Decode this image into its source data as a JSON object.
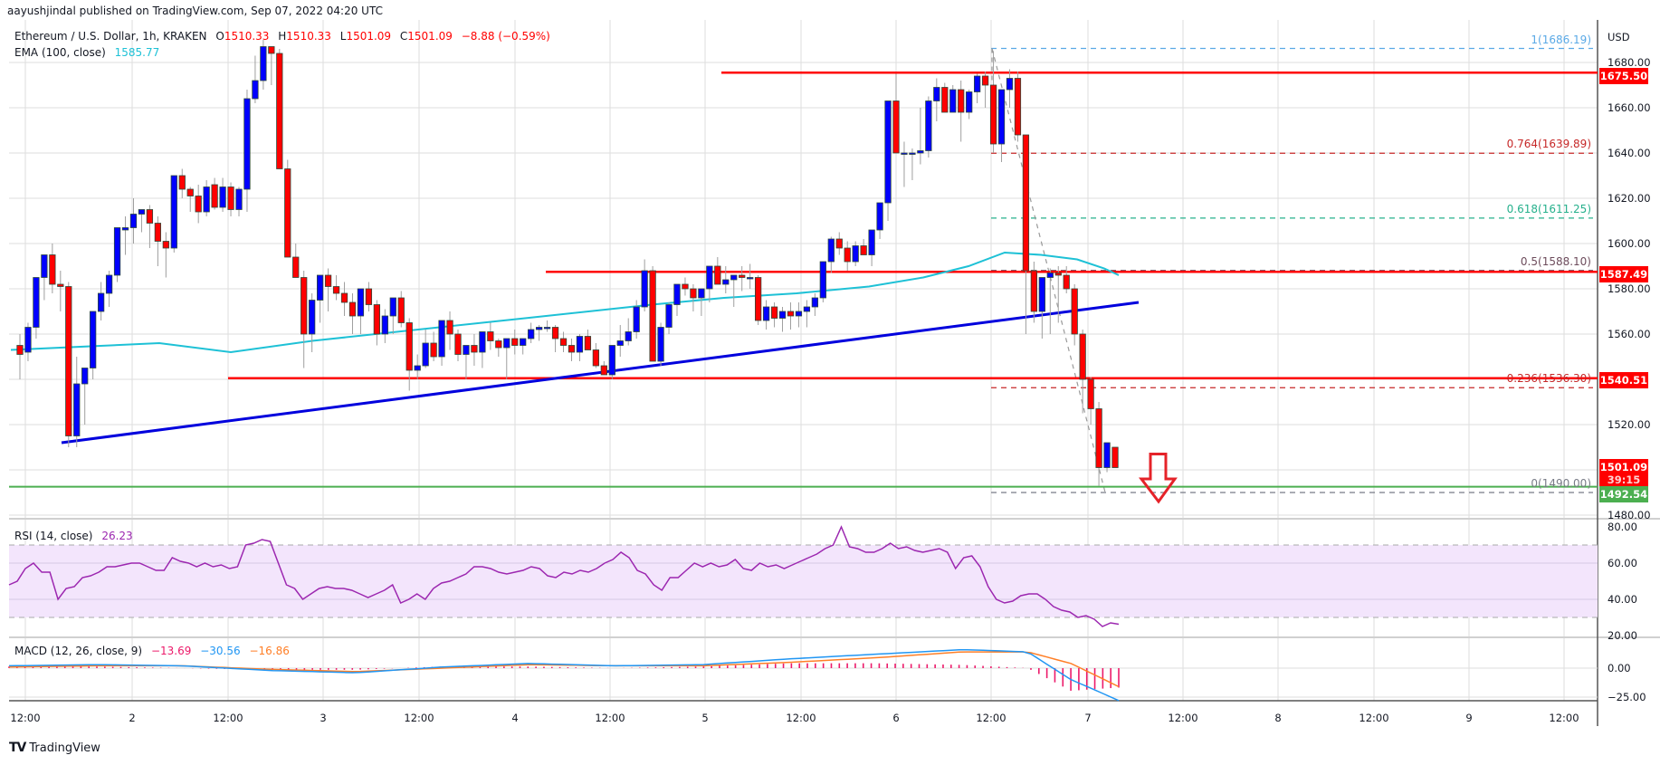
{
  "header": {
    "published": "aayushjindal published on TradingView.com, Sep 07, 2022 04:20 UTC"
  },
  "legend": {
    "symbol": "Ethereum / U.S. Dollar, 1h, KRAKEN",
    "o_label": "O",
    "o": "1510.33",
    "h_label": "H",
    "h": "1510.33",
    "l_label": "L",
    "l": "1501.09",
    "c_label": "C",
    "c": "1501.09",
    "change": "−8.88 (−0.59%)",
    "ema_label": "EMA (100, close)",
    "ema_value": "1585.77",
    "rsi_label": "RSI (14, close)",
    "rsi_value": "26.23",
    "macd_label": "MACD (12, 26, close, 9)",
    "macd_hist": "−13.69",
    "macd_line": "−30.56",
    "macd_signal": "−16.86"
  },
  "price_axis": {
    "currency": "USD",
    "ticks": [
      "1680.00",
      "1660.00",
      "1640.00",
      "1620.00",
      "1600.00",
      "1580.00",
      "1560.00",
      "1520.00",
      "1480.00"
    ],
    "tags": {
      "resistance_top": "1675.50",
      "resistance_mid": "1587.49",
      "resistance_low": "1540.51",
      "last_price": "1501.09",
      "countdown": "39:15",
      "support": "1492.54"
    }
  },
  "rsi_axis": {
    "ticks": [
      "80.00",
      "60.00",
      "40.00",
      "20.00"
    ]
  },
  "macd_axis": {
    "ticks": [
      "0.00",
      "−25.00"
    ]
  },
  "fibonacci": [
    {
      "label": "1(1686.19)",
      "price": 1686.19,
      "color": "#5aa9e6"
    },
    {
      "label": "0.764(1639.89)",
      "price": 1639.89,
      "color": "#c62828"
    },
    {
      "label": "0.618(1611.25)",
      "price": 1611.25,
      "color": "#26b08c"
    },
    {
      "label": "0.5(1588.10)",
      "price": 1588.1,
      "color": "#6d4c5c"
    },
    {
      "label": "0.236(1536.30)",
      "price": 1536.3,
      "color": "#c62828"
    },
    {
      "label": "0(1490.00)",
      "price": 1490.0,
      "color": "#787b86"
    }
  ],
  "time_axis": {
    "labels": [
      "12:00",
      "2",
      "12:00",
      "3",
      "12:00",
      "4",
      "12:00",
      "5",
      "12:00",
      "6",
      "12:00",
      "7",
      "12:00",
      "8",
      "12:00",
      "9",
      "12:00"
    ]
  },
  "branding": {
    "name": "TradingView"
  },
  "colors": {
    "up": "#0000ff",
    "down": "#ff0000",
    "ema": "#1ec1d6",
    "trendline": "#0000dd",
    "resistance": "#ff0000",
    "support": "#4caf50",
    "rsi": "#9c27b0",
    "rsi_band": "#f3e5fc",
    "macd_line": "#2196f3",
    "macd_signal": "#ff7f27",
    "macd_hist": "#ec1a6a",
    "grid": "#dedede"
  },
  "chart_data": {
    "type": "candlestick",
    "title": "Ethereum / U.S. Dollar, 1h, KRAKEN",
    "ylabel": "USD",
    "ylim": [
      1475,
      1690
    ],
    "x_start_label": "Sep 1 12:00",
    "candles_ohlc": [
      [
        1555,
        1560,
        1540,
        1551
      ],
      [
        1552,
        1565,
        1548,
        1563
      ],
      [
        1563,
        1580,
        1558,
        1585
      ],
      [
        1585,
        1595,
        1575,
        1595
      ],
      [
        1595,
        1600,
        1578,
        1582
      ],
      [
        1582,
        1588,
        1570,
        1581
      ],
      [
        1581,
        1583,
        1510,
        1515
      ],
      [
        1515,
        1550,
        1510,
        1538
      ],
      [
        1538,
        1545,
        1520,
        1545
      ],
      [
        1545,
        1570,
        1540,
        1570
      ],
      [
        1570,
        1583,
        1566,
        1578
      ],
      [
        1578,
        1588,
        1572,
        1586
      ],
      [
        1586,
        1605,
        1583,
        1607
      ],
      [
        1606,
        1612,
        1595,
        1607
      ],
      [
        1607,
        1620,
        1600,
        1613
      ],
      [
        1613,
        1615,
        1605,
        1615
      ],
      [
        1615,
        1617,
        1598,
        1609
      ],
      [
        1609,
        1612,
        1590,
        1601
      ],
      [
        1601,
        1605,
        1585,
        1598
      ],
      [
        1598,
        1630,
        1596,
        1630
      ],
      [
        1630,
        1633,
        1620,
        1624
      ],
      [
        1624,
        1625,
        1614,
        1621
      ],
      [
        1621,
        1626,
        1609,
        1614
      ],
      [
        1614,
        1628,
        1612,
        1625
      ],
      [
        1626,
        1629,
        1615,
        1616
      ],
      [
        1616,
        1629,
        1614,
        1625
      ],
      [
        1625,
        1627,
        1612,
        1615
      ],
      [
        1615,
        1625,
        1612,
        1624
      ],
      [
        1624,
        1668,
        1614,
        1664
      ],
      [
        1664,
        1683,
        1662,
        1672
      ],
      [
        1672,
        1690,
        1668,
        1687
      ],
      [
        1687,
        1678,
        1670,
        1684
      ],
      [
        1684,
        1686,
        1640,
        1633
      ],
      [
        1633,
        1637,
        1600,
        1594
      ],
      [
        1594,
        1600,
        1585,
        1585
      ],
      [
        1585,
        1588,
        1545,
        1560
      ],
      [
        1560,
        1578,
        1552,
        1575
      ],
      [
        1575,
        1578,
        1565,
        1586
      ],
      [
        1586,
        1589,
        1570,
        1581
      ],
      [
        1581,
        1586,
        1575,
        1578
      ],
      [
        1578,
        1583,
        1568,
        1574
      ],
      [
        1574,
        1578,
        1560,
        1568
      ],
      [
        1568,
        1580,
        1560,
        1580
      ],
      [
        1580,
        1583,
        1570,
        1573
      ],
      [
        1573,
        1575,
        1555,
        1560
      ],
      [
        1560,
        1571,
        1556,
        1568
      ],
      [
        1568,
        1575,
        1560,
        1576
      ],
      [
        1576,
        1579,
        1563,
        1565
      ],
      [
        1565,
        1567,
        1535,
        1544
      ],
      [
        1544,
        1551,
        1540,
        1546
      ],
      [
        1546,
        1562,
        1545,
        1556
      ],
      [
        1556,
        1561,
        1548,
        1550
      ],
      [
        1550,
        1565,
        1546,
        1566
      ],
      [
        1566,
        1570,
        1553,
        1560
      ],
      [
        1560,
        1562,
        1548,
        1551
      ],
      [
        1551,
        1555,
        1540,
        1555
      ],
      [
        1555,
        1560,
        1546,
        1552
      ],
      [
        1552,
        1560,
        1545,
        1561
      ],
      [
        1561,
        1565,
        1553,
        1557
      ],
      [
        1557,
        1558,
        1550,
        1554
      ],
      [
        1554,
        1556,
        1540,
        1558
      ],
      [
        1558,
        1562,
        1551,
        1555
      ],
      [
        1555,
        1558,
        1551,
        1558
      ],
      [
        1558,
        1565,
        1556,
        1562
      ],
      [
        1562,
        1564,
        1557,
        1563
      ],
      [
        1563,
        1566,
        1561,
        1563
      ],
      [
        1563,
        1564,
        1552,
        1558
      ],
      [
        1558,
        1561,
        1552,
        1555
      ],
      [
        1555,
        1558,
        1548,
        1552
      ],
      [
        1552,
        1560,
        1548,
        1559
      ],
      [
        1559,
        1562,
        1553,
        1553
      ],
      [
        1553,
        1556,
        1545,
        1546
      ],
      [
        1546,
        1548,
        1542,
        1542
      ],
      [
        1542,
        1555,
        1540,
        1555
      ],
      [
        1555,
        1564,
        1550,
        1557
      ],
      [
        1557,
        1567,
        1555,
        1561
      ],
      [
        1561,
        1575,
        1558,
        1572
      ],
      [
        1572,
        1593,
        1570,
        1588
      ],
      [
        1588,
        1590,
        1548,
        1548
      ],
      [
        1548,
        1565,
        1546,
        1563
      ],
      [
        1563,
        1574,
        1560,
        1573
      ],
      [
        1573,
        1580,
        1568,
        1582
      ],
      [
        1582,
        1585,
        1577,
        1580
      ],
      [
        1580,
        1582,
        1570,
        1576
      ],
      [
        1576,
        1580,
        1568,
        1580
      ],
      [
        1580,
        1586,
        1574,
        1590
      ],
      [
        1590,
        1594,
        1584,
        1582
      ],
      [
        1582,
        1590,
        1578,
        1584
      ],
      [
        1584,
        1585,
        1572,
        1586
      ],
      [
        1586,
        1590,
        1579,
        1585
      ],
      [
        1585,
        1591,
        1580,
        1585
      ],
      [
        1585,
        1586,
        1564,
        1566
      ],
      [
        1566,
        1575,
        1562,
        1572
      ],
      [
        1572,
        1574,
        1563,
        1567
      ],
      [
        1567,
        1572,
        1561,
        1570
      ],
      [
        1570,
        1574,
        1562,
        1568
      ],
      [
        1568,
        1574,
        1563,
        1570
      ],
      [
        1570,
        1575,
        1563,
        1572
      ],
      [
        1572,
        1578,
        1568,
        1576
      ],
      [
        1576,
        1592,
        1574,
        1592
      ],
      [
        1592,
        1603,
        1587,
        1602
      ],
      [
        1602,
        1605,
        1595,
        1598
      ],
      [
        1598,
        1601,
        1588,
        1592
      ],
      [
        1592,
        1601,
        1590,
        1599
      ],
      [
        1599,
        1602,
        1595,
        1595
      ],
      [
        1595,
        1605,
        1590,
        1606
      ],
      [
        1606,
        1618,
        1602,
        1618
      ],
      [
        1618,
        1648,
        1610,
        1663
      ],
      [
        1663,
        1675,
        1640,
        1640
      ],
      [
        1640,
        1645,
        1625,
        1640
      ],
      [
        1640,
        1642,
        1628,
        1640
      ],
      [
        1640,
        1660,
        1635,
        1641
      ],
      [
        1641,
        1665,
        1638,
        1663
      ],
      [
        1663,
        1673,
        1654,
        1669
      ],
      [
        1669,
        1671,
        1659,
        1658
      ],
      [
        1658,
        1670,
        1658,
        1668
      ],
      [
        1668,
        1672,
        1645,
        1658
      ],
      [
        1658,
        1668,
        1655,
        1667
      ],
      [
        1667,
        1675,
        1662,
        1674
      ],
      [
        1674,
        1676,
        1660,
        1670
      ],
      [
        1670,
        1685,
        1640,
        1644
      ],
      [
        1644,
        1668,
        1636,
        1668
      ],
      [
        1668,
        1677,
        1660,
        1673
      ],
      [
        1673,
        1676,
        1645,
        1648
      ],
      [
        1648,
        1648,
        1560,
        1588
      ],
      [
        1588,
        1592,
        1565,
        1570
      ],
      [
        1570,
        1583,
        1558,
        1585
      ],
      [
        1585,
        1589,
        1560,
        1587
      ],
      [
        1587,
        1590,
        1565,
        1586
      ],
      [
        1586,
        1590,
        1578,
        1580
      ],
      [
        1580,
        1582,
        1555,
        1560
      ],
      [
        1560,
        1562,
        1525,
        1540
      ],
      [
        1540,
        1541,
        1520,
        1527
      ],
      [
        1527,
        1530,
        1493,
        1501
      ],
      [
        1501,
        1510,
        1499,
        1512
      ],
      [
        1510,
        1510,
        1501,
        1501
      ]
    ],
    "ema100_approx": [
      [
        0,
        1553
      ],
      [
        150,
        1553
      ],
      [
        230,
        1548
      ],
      [
        320,
        1557
      ],
      [
        500,
        1567
      ],
      [
        840,
        1590
      ],
      [
        1000,
        1575
      ],
      [
        1160,
        1574
      ],
      [
        1260,
        1585
      ],
      [
        1320,
        1580
      ],
      [
        1440,
        1566
      ],
      [
        1590,
        1562
      ],
      [
        1700,
        1563
      ],
      [
        1840,
        1565
      ],
      [
        1980,
        1569
      ],
      [
        2080,
        1577
      ],
      [
        2190,
        1593
      ],
      [
        2280,
        1597
      ],
      [
        2360,
        1596
      ],
      [
        2420,
        1592
      ],
      [
        2460,
        1588
      ]
    ],
    "trendline": {
      "from": {
        "index": 6,
        "price": 1512
      },
      "to": {
        "index": 131,
        "price": 1575
      }
    },
    "horizontal_levels": [
      1675.5,
      1587.49,
      1540.51,
      1492.54
    ],
    "rsi": {
      "title": "RSI (14, close)",
      "last": 26.23,
      "bands": [
        70,
        30
      ],
      "ylim": [
        20,
        82
      ],
      "values": [
        48,
        50,
        57,
        60,
        55,
        55,
        40,
        46,
        47,
        52,
        53,
        55,
        58,
        58,
        59,
        60,
        60,
        58,
        56,
        56,
        63,
        61,
        60,
        58,
        60,
        58,
        59,
        57,
        58,
        70,
        71,
        73,
        72,
        60,
        48,
        46,
        40,
        43,
        46,
        47,
        46,
        46,
        45,
        43,
        41,
        43,
        45,
        48,
        38,
        40,
        43,
        40,
        46,
        49,
        50,
        52,
        54,
        58,
        58,
        57,
        55,
        54,
        55,
        56,
        58,
        57,
        53,
        52,
        55,
        54,
        56,
        55,
        57,
        60,
        62,
        66,
        63,
        56,
        54,
        48,
        45,
        52,
        52,
        56,
        60,
        58,
        60,
        58,
        59,
        62,
        57,
        56,
        60,
        58,
        59,
        57,
        59,
        61,
        63,
        65,
        68,
        70,
        80,
        69,
        68,
        66,
        66,
        68,
        71,
        68,
        69,
        67,
        66,
        67,
        68,
        66,
        57,
        63,
        64,
        58,
        47,
        40,
        38,
        39,
        42,
        43,
        43,
        40,
        36,
        34,
        33,
        30,
        31,
        29,
        25,
        27,
        26.23
      ]
    },
    "macd": {
      "title": "MACD (12, 26, close, 9)",
      "last_hist": -13.69,
      "last_macd": -30.56,
      "last_signal": -16.86,
      "ylim": [
        -30,
        22
      ],
      "macd_line_approx": [
        [
          0,
          2
        ],
        [
          200,
          3
        ],
        [
          400,
          2
        ],
        [
          600,
          -2
        ],
        [
          800,
          -4
        ],
        [
          1000,
          1
        ],
        [
          1200,
          4
        ],
        [
          1400,
          2
        ],
        [
          1600,
          3
        ],
        [
          1800,
          8
        ],
        [
          2000,
          12
        ],
        [
          2200,
          16
        ],
        [
          2350,
          14
        ],
        [
          2450,
          -10
        ],
        [
          2500,
          -18
        ],
        [
          2560,
          -28
        ]
      ],
      "signal_line_approx": [
        [
          0,
          1
        ],
        [
          200,
          2
        ],
        [
          400,
          2
        ],
        [
          600,
          -1
        ],
        [
          800,
          -3
        ],
        [
          1000,
          0
        ],
        [
          1200,
          3
        ],
        [
          1400,
          2
        ],
        [
          1600,
          2
        ],
        [
          1800,
          5
        ],
        [
          2000,
          9
        ],
        [
          2200,
          14
        ],
        [
          2350,
          14
        ],
        [
          2450,
          4
        ],
        [
          2500,
          -5
        ],
        [
          2560,
          -16
        ]
      ]
    }
  }
}
